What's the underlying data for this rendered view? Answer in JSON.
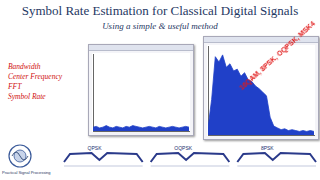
{
  "header": {
    "title": "Symbol Rate Estimation for Classical Digital Signals",
    "subtitle": "Using a simple & useful method"
  },
  "features": [
    "Bandwidth",
    "Center Frequency",
    "FFT",
    "Symbol Rate"
  ],
  "chart_data": [
    {
      "type": "line",
      "color": "#2040c8",
      "tick_labels": false,
      "grid": false,
      "x": [
        0,
        1,
        2,
        3,
        4,
        5,
        6,
        7,
        8,
        9,
        10,
        11,
        12,
        13,
        14,
        15,
        16,
        17,
        18,
        19,
        20,
        21,
        22,
        23,
        24,
        25,
        26,
        27,
        28,
        29
      ],
      "values": [
        5,
        6,
        4,
        5,
        7,
        5,
        4,
        6,
        5,
        4,
        6,
        5,
        7,
        6,
        5,
        4,
        5,
        6,
        5,
        4,
        6,
        5,
        4,
        5,
        6,
        5,
        4,
        5,
        6,
        5
      ],
      "xlim": [
        0,
        29
      ],
      "ylim": [
        0,
        100
      ]
    },
    {
      "type": "line",
      "color": "#2040c8",
      "tick_labels": false,
      "grid": false,
      "x": [
        0,
        1,
        2,
        3,
        4,
        5,
        6,
        7,
        8,
        9,
        10,
        11,
        12,
        13,
        14,
        15,
        16,
        17,
        18,
        19,
        20,
        21,
        22,
        23,
        24,
        25,
        26,
        27,
        28,
        29
      ],
      "values": [
        8,
        40,
        88,
        82,
        90,
        76,
        80,
        72,
        74,
        66,
        70,
        62,
        60,
        55,
        52,
        48,
        44,
        20,
        10,
        8,
        6,
        7,
        5,
        6,
        5,
        4,
        5,
        4,
        5,
        4
      ],
      "xlim": [
        0,
        29
      ],
      "ylim": [
        0,
        100
      ]
    }
  ],
  "overlay": "16QAM, 8PSK, OQPSK, MSK4",
  "waveform_labels": [
    "QPSK",
    "OQPSK",
    "8PSK"
  ],
  "logo": "Practical Signal Processing"
}
